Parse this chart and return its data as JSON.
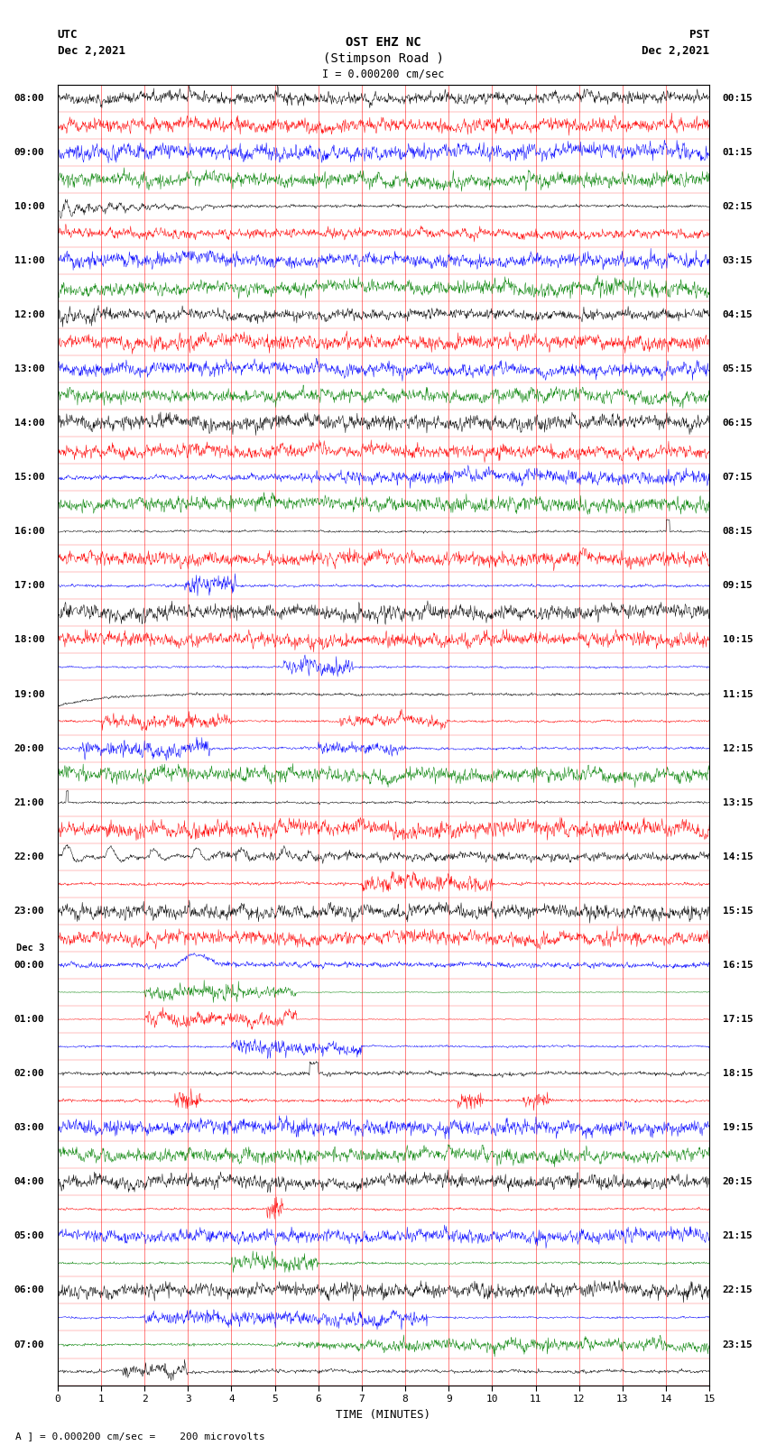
{
  "title_line1": "OST EHZ NC",
  "title_line2": "(Stimpson Road )",
  "title_line3": "I = 0.000200 cm/sec",
  "left_header_line1": "UTC",
  "left_header_line2": "Dec 2,2021",
  "right_header_line1": "PST",
  "right_header_line2": "Dec 2,2021",
  "xlabel": "TIME (MINUTES)",
  "footer": "A ] = 0.000200 cm/sec =    200 microvolts",
  "xlim": [
    0,
    15
  ],
  "xticks": [
    0,
    1,
    2,
    3,
    4,
    5,
    6,
    7,
    8,
    9,
    10,
    11,
    12,
    13,
    14,
    15
  ],
  "bg_color": "#ffffff",
  "colors_cycle": [
    "#000000",
    "#ff0000",
    "#0000ff",
    "#008000"
  ],
  "grid_color": "#ff0000",
  "num_rows": 48
}
